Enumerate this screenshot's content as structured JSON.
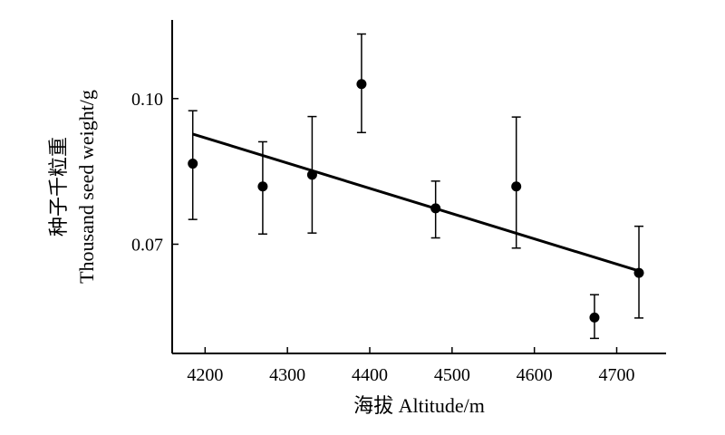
{
  "chart_data": {
    "type": "scatter",
    "xlabel": "海拔 Altitude/m",
    "ylabel_cn": "种子千粒重",
    "ylabel_en": "Thousand seed weight/g",
    "xlim": [
      4160,
      4760
    ],
    "ylim": [
      0.0475,
      0.1162
    ],
    "x_ticks": [
      4200,
      4300,
      4400,
      4500,
      4600,
      4700
    ],
    "y_ticks": [
      0.07,
      0.1
    ],
    "y_tick_labels": [
      "0.07",
      "0.10"
    ],
    "points": [
      {
        "x": 4185,
        "y": 0.0866,
        "err_lo": 0.0751,
        "err_hi": 0.0975
      },
      {
        "x": 4270,
        "y": 0.0819,
        "err_lo": 0.0721,
        "err_hi": 0.0911
      },
      {
        "x": 4330,
        "y": 0.0843,
        "err_lo": 0.0723,
        "err_hi": 0.0963
      },
      {
        "x": 4390,
        "y": 0.103,
        "err_lo": 0.093,
        "err_hi": 0.1133
      },
      {
        "x": 4480,
        "y": 0.0774,
        "err_lo": 0.0713,
        "err_hi": 0.083
      },
      {
        "x": 4578,
        "y": 0.0819,
        "err_lo": 0.0692,
        "err_hi": 0.0962
      },
      {
        "x": 4673,
        "y": 0.0549,
        "err_lo": 0.0506,
        "err_hi": 0.0596
      },
      {
        "x": 4727,
        "y": 0.0641,
        "err_lo": 0.0548,
        "err_hi": 0.0737
      }
    ],
    "trendline": [
      {
        "x": 4185,
        "y": 0.0927
      },
      {
        "x": 4727,
        "y": 0.0645
      }
    ],
    "grid": false,
    "legend": "none"
  }
}
